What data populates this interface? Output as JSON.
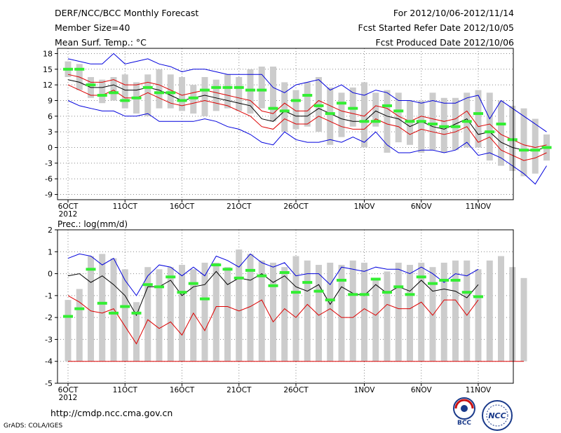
{
  "header": {
    "title": "DERF/NCC/BCC Monthly Forecast",
    "member_size": "Member Size=40",
    "variable": "Mean Surf. Temp.: °C",
    "period": "For 2012/10/06-2012/11/14",
    "start_date": "Fcst Started Refer Date 2012/10/05",
    "produced_date": "Fcst Produced Date 2012/10/06"
  },
  "footer": {
    "url": "http://cmdp.ncc.cma.gov.cn",
    "credit": "GrADS: COLA/IGES",
    "logo_bcc": "BCC",
    "logo_ncc": "NCC"
  },
  "colors": {
    "box": "#cccccc",
    "obs": "#33ee33",
    "mean": "#000000",
    "spread": "#dd0000",
    "envelope": "#0000dd",
    "grid": "#888888"
  },
  "chart_data": [
    {
      "type": "box-line",
      "title": "Mean Surf. Temp.: °C",
      "ylabel": "°C",
      "ylim": [
        -10,
        19
      ],
      "yticks": [
        -9,
        -6,
        -3,
        0,
        3,
        6,
        9,
        12,
        15,
        18
      ],
      "xticks": [
        {
          "day": 1,
          "label": "6OCT",
          "sub": "2012"
        },
        {
          "day": 6,
          "label": "11OCT"
        },
        {
          "day": 11,
          "label": "16OCT"
        },
        {
          "day": 16,
          "label": "21OCT"
        },
        {
          "day": 21,
          "label": "26OCT"
        },
        {
          "day": 27,
          "label": "1NOV"
        },
        {
          "day": 32,
          "label": "6NOV"
        },
        {
          "day": 37,
          "label": "11NOV"
        }
      ],
      "box_top": [
        16.5,
        16,
        13.5,
        13,
        13.5,
        14,
        12.5,
        14,
        15,
        14,
        13.5,
        12,
        13.5,
        13,
        14,
        13.5,
        15,
        15.5,
        15.5,
        12.5,
        11,
        12.5,
        13.5,
        11.5,
        10.5,
        11.5,
        12.5,
        10.5,
        11,
        10.5,
        9,
        9,
        10.5,
        9.5,
        9.5,
        10.5,
        11,
        10.5,
        9,
        8,
        7.5,
        5.5,
        2.5
      ],
      "box_bottom": [
        13.5,
        11,
        9.5,
        8.5,
        9,
        7.5,
        6.5,
        6,
        7.5,
        7.5,
        7,
        6.5,
        6,
        7,
        7.5,
        7,
        6.5,
        7.5,
        5,
        3,
        3.5,
        4,
        3,
        0.5,
        2,
        4,
        0,
        4,
        -1,
        1,
        0.5,
        -1,
        -0.5,
        -1,
        -0.5,
        0,
        0,
        -2.5,
        -3.5,
        -4.5,
        -5.5,
        -5,
        -2.5
      ],
      "obs": [
        15,
        15,
        12,
        10,
        10.5,
        9,
        9.5,
        11.5,
        10.5,
        10.5,
        9,
        9.5,
        11,
        11.5,
        11.5,
        11.5,
        11,
        11,
        7.5,
        7,
        9,
        10,
        8,
        6.5,
        8.5,
        7.5,
        5,
        5,
        8,
        7,
        5,
        5,
        4.5,
        4,
        4,
        5,
        6.5,
        3,
        4.5,
        1.5,
        -0.5,
        -0.5,
        0
      ],
      "mean": [
        13,
        12.5,
        11.5,
        11.5,
        12,
        11,
        11,
        11.5,
        11,
        10,
        9,
        9.5,
        10,
        9.5,
        9,
        8.5,
        8,
        5.5,
        5,
        7,
        6,
        6,
        7.5,
        6.5,
        5.5,
        5,
        5,
        7,
        6,
        5.5,
        4,
        5,
        4,
        3.5,
        4.5,
        5.5,
        2.5,
        3,
        1,
        0,
        -0.5,
        -0.5,
        0
      ],
      "upper": [
        14,
        13.5,
        12.5,
        12.5,
        13,
        12,
        12,
        12.5,
        12,
        11,
        10,
        10.5,
        11,
        10.5,
        10,
        9.5,
        9,
        7,
        6.5,
        8.5,
        7,
        7,
        9,
        8,
        7,
        6.5,
        6,
        8,
        7.5,
        6,
        5,
        6,
        5.5,
        5,
        5.5,
        7,
        4,
        4.5,
        2.5,
        1.5,
        0.5,
        0,
        0.5
      ],
      "lower": [
        12,
        11,
        10,
        10,
        11,
        9.5,
        9.5,
        10.5,
        9.5,
        8.5,
        8,
        8.5,
        9,
        8.5,
        8,
        7,
        6,
        4,
        3.5,
        5.5,
        4.5,
        4.5,
        6,
        5,
        4,
        3.5,
        3.5,
        5.5,
        4.5,
        4,
        2.5,
        3.5,
        3,
        2.5,
        3,
        4,
        1,
        2,
        -0.5,
        -1.5,
        -2.5,
        -2,
        -1
      ],
      "env_max": [
        17,
        16.5,
        16,
        16,
        18,
        16,
        16.5,
        17,
        16,
        15.5,
        14.5,
        15,
        15,
        14.5,
        14,
        14,
        14,
        14,
        11.5,
        10.5,
        12,
        12.5,
        13,
        11,
        12,
        10.5,
        10,
        11,
        10.5,
        9,
        9,
        8.5,
        9,
        8.5,
        8.5,
        9.5,
        10,
        5.5,
        9,
        7.5,
        6,
        4.5,
        3
      ],
      "env_min": [
        9,
        8,
        7.5,
        7,
        7,
        6,
        6,
        6.5,
        5,
        5,
        5,
        5,
        5.5,
        5,
        4,
        3.5,
        2.5,
        1,
        0.5,
        3,
        1.5,
        1,
        1,
        1.5,
        1,
        2,
        1,
        3,
        0.5,
        -1,
        -1,
        -0.5,
        -0.5,
        -1,
        -0.5,
        1,
        -1.5,
        -1,
        -2,
        -3.5,
        -5,
        -7,
        -3.5
      ]
    },
    {
      "type": "box-line",
      "title": "Prec.: log(mm/d)",
      "ylabel": "log(mm/d)",
      "ylim": [
        -5,
        2
      ],
      "yticks": [
        -5,
        -4,
        -3,
        -2,
        -1,
        0,
        1,
        2
      ],
      "xticks": [
        {
          "day": 1,
          "label": "6OCT",
          "sub": "2012"
        },
        {
          "day": 6,
          "label": "11OCT"
        },
        {
          "day": 11,
          "label": "16OCT"
        },
        {
          "day": 16,
          "label": "21OCT"
        },
        {
          "day": 21,
          "label": "26OCT"
        },
        {
          "day": 27,
          "label": "1NOV"
        },
        {
          "day": 32,
          "label": "6NOV"
        },
        {
          "day": 37,
          "label": "11NOV"
        }
      ],
      "box_top": [
        -1.2,
        -0.7,
        0.8,
        0.9,
        0.7,
        0.2,
        -1.3,
        0.3,
        0.2,
        0.3,
        0.4,
        0.2,
        0.5,
        0.5,
        0.3,
        1.1,
        0.9,
        0.6,
        0.5,
        0.3,
        0.8,
        0.6,
        0.4,
        0.5,
        0.4,
        0.6,
        0.5,
        -0.2,
        0.1,
        0.5,
        0.4,
        0.5,
        0.3,
        0.5,
        0.6,
        0.6,
        0.2,
        0.6,
        0.8,
        0.3,
        -0.2
      ],
      "box_bottom": [
        -4,
        -4,
        -4,
        -4,
        -4,
        -4,
        -4,
        -4,
        -4,
        -4,
        -4,
        -4,
        -4,
        -4,
        -4,
        -4,
        -4,
        -4,
        -4,
        -4,
        -4,
        -4,
        -4,
        -4,
        -4,
        -4,
        -4,
        -4,
        -4,
        -4,
        -4,
        -4,
        -4,
        -4,
        -4,
        -4,
        -4,
        -4,
        -4,
        -4,
        -4
      ],
      "obs": [
        -1.95,
        -1.6,
        0.2,
        -1.35,
        -1.8,
        -1.5,
        -1.8,
        -0.5,
        -0.6,
        -0.15,
        -0.85,
        -0.45,
        -1.15,
        0.4,
        0.2,
        -0.2,
        0.15,
        -0.1,
        -0.55,
        0.05,
        -0.85,
        -0.4,
        -0.8,
        -1.2,
        -0.3,
        -0.95,
        -0.95,
        -0.25,
        -0.85,
        -0.6,
        -0.95,
        -0.15,
        -0.45,
        -0.3,
        -0.3,
        -0.85,
        -1.05
      ],
      "mean": [
        -0.1,
        0.0,
        -0.4,
        -0.1,
        -0.5,
        -1.0,
        -1.9,
        -0.6,
        -0.6,
        -0.3,
        -1.0,
        -0.6,
        -0.5,
        0.1,
        -0.5,
        -0.2,
        -0.3,
        0.0,
        -0.4,
        -0.1,
        -0.6,
        -0.8,
        -0.5,
        -1.4,
        -0.6,
        -0.9,
        -1.0,
        -0.5,
        -0.9,
        -0.6,
        -0.8,
        -0.3,
        -0.8,
        -0.7,
        -0.8,
        -1.1,
        -0.5
      ],
      "upper": [
        0.7,
        0.9,
        0.8,
        0.4,
        0.7,
        -0.3,
        -1.0,
        -0.1,
        0.4,
        0.3,
        -0.1,
        0.3,
        -0.1,
        0.8,
        0.6,
        0.3,
        0.9,
        0.5,
        0.3,
        0.5,
        -0.1,
        0.0,
        0.0,
        -0.5,
        0.3,
        0.2,
        0.1,
        0.3,
        0.2,
        0.2,
        0.0,
        0.3,
        0.0,
        -0.4,
        0.0,
        -0.1,
        0.2
      ],
      "lower": [
        -1.0,
        -1.3,
        -1.7,
        -1.8,
        -1.6,
        -2.4,
        -3.2,
        -2.1,
        -2.5,
        -2.2,
        -2.8,
        -1.8,
        -2.6,
        -1.5,
        -1.5,
        -1.7,
        -1.5,
        -1.2,
        -2.2,
        -1.6,
        -2.0,
        -1.4,
        -1.9,
        -1.6,
        -2.0,
        -2.0,
        -1.6,
        -1.9,
        -1.4,
        -1.6,
        -1.6,
        -1.3,
        -1.9,
        -1.2,
        -1.2,
        -1.9,
        -1.2
      ],
      "floor": -4
    }
  ]
}
